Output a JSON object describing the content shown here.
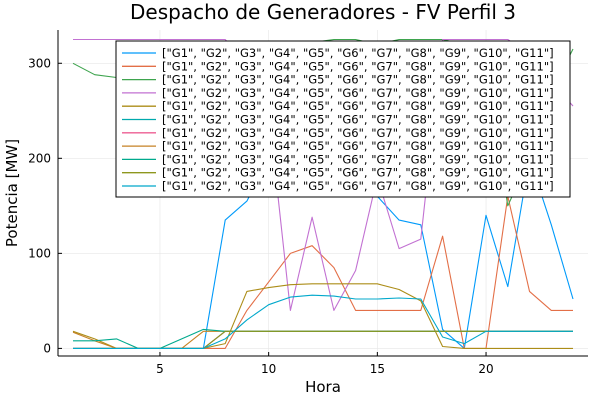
{
  "chart_data": {
    "type": "line",
    "title": "Despacho de Generadores - FV Perfil 3",
    "xlabel": "Hora",
    "ylabel": "Potencia [MW]",
    "xlim": [
      0.31,
      24.69
    ],
    "ylim": [
      -8,
      335
    ],
    "xticks": [
      5,
      10,
      15,
      20
    ],
    "yticks": [
      0,
      100,
      200,
      300
    ],
    "grid": true,
    "legend_position": "top-right",
    "x": [
      1,
      2,
      3,
      4,
      5,
      6,
      7,
      8,
      9,
      10,
      11,
      12,
      13,
      14,
      15,
      16,
      17,
      18,
      19,
      20,
      21,
      22,
      23,
      24
    ],
    "series": [
      {
        "name": "[\"G1\", \"G2\", \"G3\", \"G4\", \"G5\", \"G6\", \"G7\", \"G8\", \"G9\", \"G10\", \"G11\"]",
        "color": "#009AFA",
        "values": [
          0,
          0,
          0,
          0,
          0,
          0,
          0,
          135,
          155,
          200,
          260,
          270,
          260,
          240,
          160,
          135,
          130,
          20,
          0,
          140,
          65,
          200,
          130,
          52
        ]
      },
      {
        "name": "[\"G1\", \"G2\", \"G3\", \"G4\", \"G5\", \"G6\", \"G7\", \"G8\", \"G9\", \"G10\", \"G11\"]",
        "color": "#E36F47",
        "values": [
          0,
          0,
          0,
          0,
          0,
          0,
          0,
          0,
          40,
          70,
          100,
          108,
          85,
          40,
          40,
          40,
          40,
          118,
          0,
          0,
          160,
          60,
          40,
          40
        ]
      },
      {
        "name": "[\"G1\", \"G2\", \"G3\", \"G4\", \"G5\", \"G6\", \"G7\", \"G8\", \"G9\", \"G10\", \"G11\"]",
        "color": "#3EA44E",
        "values": [
          300,
          288,
          285,
          280,
          275,
          270,
          280,
          290,
          300,
          310,
          320,
          322,
          325,
          325,
          320,
          325,
          325,
          325,
          320,
          300,
          150,
          200,
          270,
          315
        ]
      },
      {
        "name": "[\"G1\", \"G2\", \"G3\", \"G4\", \"G5\", \"G6\", \"G7\", \"G8\", \"G9\", \"G10\", \"G11\"]",
        "color": "#C271D2",
        "values": [
          325,
          325,
          325,
          325,
          325,
          325,
          325,
          325,
          300,
          250,
          40,
          138,
          40,
          82,
          180,
          105,
          115,
          325,
          325,
          325,
          325,
          310,
          280,
          255
        ]
      },
      {
        "name": "[\"G1\", \"G2\", \"G3\", \"G4\", \"G5\", \"G6\", \"G7\", \"G8\", \"G9\", \"G10\", \"G11\"]",
        "color": "#AC8D18",
        "values": [
          18,
          10,
          0,
          0,
          0,
          0,
          0,
          5,
          60,
          64,
          67,
          68,
          68,
          68,
          68,
          62,
          50,
          2,
          0,
          0,
          0,
          0,
          0,
          0
        ]
      },
      {
        "name": "[\"G1\", \"G2\", \"G3\", \"G4\", \"G5\", \"G6\", \"G7\", \"G8\", \"G9\", \"G10\", \"G11\"]",
        "color": "#00A9AD",
        "values": [
          0,
          0,
          0,
          0,
          0,
          0,
          0,
          18,
          18,
          18,
          18,
          18,
          18,
          18,
          18,
          18,
          18,
          18,
          18,
          18,
          18,
          18,
          18,
          18
        ]
      },
      {
        "name": "[\"G1\", \"G2\", \"G3\", \"G4\", \"G5\", \"G6\", \"G7\", \"G8\", \"G9\", \"G10\", \"G11\"]",
        "color": "#ED5E93",
        "values": [
          0,
          0,
          0,
          0,
          0,
          0,
          0,
          18,
          18,
          18,
          18,
          18,
          18,
          18,
          18,
          18,
          18,
          18,
          18,
          18,
          18,
          18,
          18,
          18
        ]
      },
      {
        "name": "[\"G1\", \"G2\", \"G3\", \"G4\", \"G5\", \"G6\", \"G7\", \"G8\", \"G9\", \"G10\", \"G11\"]",
        "color": "#C68225",
        "values": [
          17,
          8,
          0,
          0,
          0,
          0,
          18,
          18,
          18,
          18,
          18,
          18,
          18,
          18,
          18,
          18,
          18,
          18,
          18,
          18,
          18,
          18,
          18,
          18
        ]
      },
      {
        "name": "[\"G1\", \"G2\", \"G3\", \"G4\", \"G5\", \"G6\", \"G7\", \"G8\", \"G9\", \"G10\", \"G11\"]",
        "color": "#00A98D",
        "values": [
          8,
          8,
          10,
          0,
          0,
          10,
          20,
          18,
          18,
          18,
          18,
          18,
          18,
          18,
          18,
          18,
          18,
          18,
          18,
          18,
          18,
          18,
          18,
          18
        ]
      },
      {
        "name": "[\"G1\", \"G2\", \"G3\", \"G4\", \"G5\", \"G6\", \"G7\", \"G8\", \"G9\", \"G10\", \"G11\"]",
        "color": "#8E971E",
        "values": [
          0,
          0,
          0,
          0,
          0,
          0,
          0,
          18,
          18,
          18,
          18,
          18,
          18,
          18,
          18,
          18,
          18,
          18,
          18,
          18,
          18,
          18,
          18,
          18
        ]
      },
      {
        "name": "[\"G1\", \"G2\", \"G3\", \"G4\", \"G5\", \"G6\", \"G7\", \"G8\", \"G9\", \"G10\", \"G11\"]",
        "color": "#00A8CB",
        "values": [
          0,
          0,
          0,
          0,
          0,
          0,
          0,
          10,
          30,
          46,
          54,
          56,
          55,
          52,
          52,
          53,
          52,
          12,
          5,
          18,
          18,
          18,
          18,
          18
        ]
      }
    ]
  }
}
